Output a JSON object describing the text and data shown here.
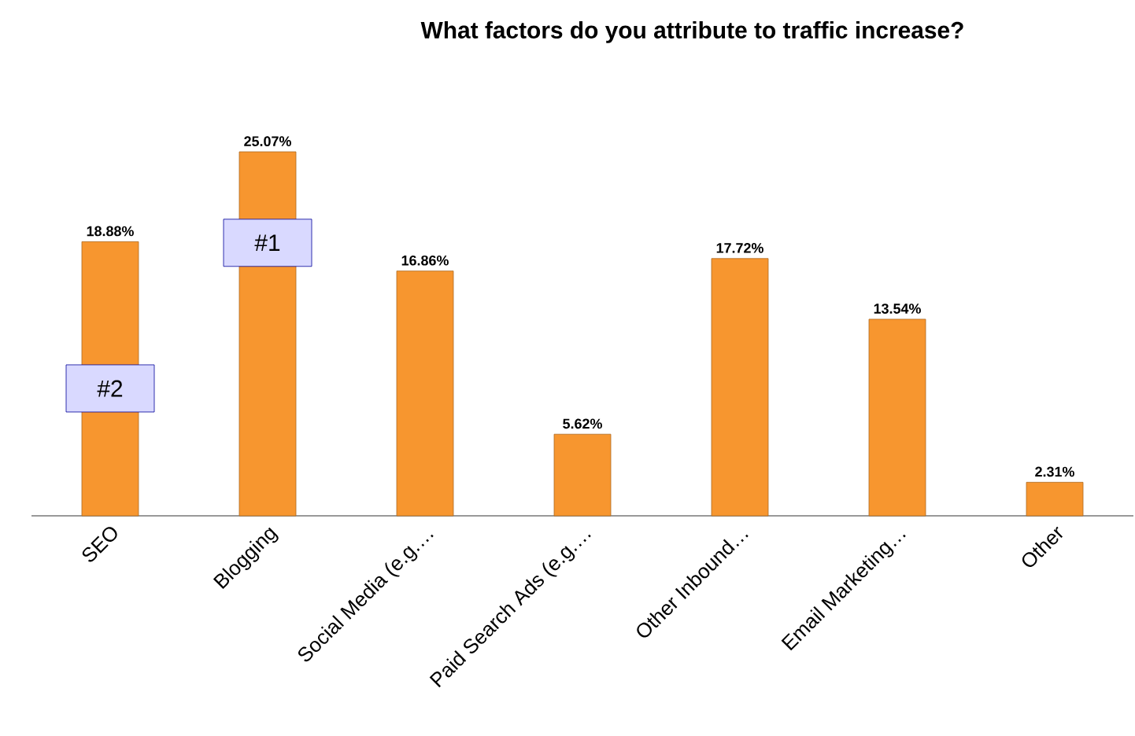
{
  "chart_data": {
    "type": "bar",
    "title": "What factors do you attribute to traffic increase?",
    "categories": [
      "SEO",
      "Blogging",
      "Social Media (e.g.…",
      "Paid Search Ads (e.g.…",
      "Other Inbound…",
      "Email Marketing…",
      "Other"
    ],
    "values": [
      18.88,
      25.07,
      16.86,
      5.62,
      17.72,
      13.54,
      2.31
    ],
    "value_labels": [
      "18.88%",
      "25.07%",
      "16.86%",
      "5.62%",
      "17.72%",
      "13.54%",
      "2.31%"
    ],
    "color": "#f7962f",
    "tick_labels": "x",
    "annotations": [
      "#2",
      "#1"
    ]
  }
}
